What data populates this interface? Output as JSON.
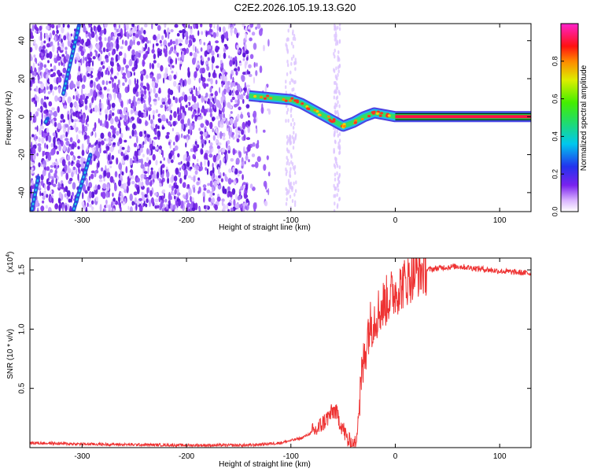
{
  "title": "C2E2.2026.105.19.13.G20",
  "chart_data": [
    {
      "type": "heatmap",
      "xlabel": "Height of straight line (km)",
      "ylabel": "Frequency (Hz)",
      "xlim": [
        -350,
        130
      ],
      "ylim": [
        -50,
        49
      ],
      "xticks": [
        -300,
        -200,
        -100,
        0,
        100
      ],
      "yticks": [
        -40,
        -20,
        0,
        20,
        40
      ],
      "colorbar": {
        "label": "Normalized spectral amplitude",
        "range": [
          0.0,
          1.0
        ],
        "ticks": [
          0.0,
          0.2,
          0.4,
          0.6,
          0.8
        ],
        "colormap": "rainbow (white-violet-blue-cyan-green-yellow-red-magenta)"
      },
      "tone_frequency_hz": 0,
      "signal_trace": {
        "x": [
          -140,
          -120,
          -100,
          -90,
          -80,
          -70,
          -60,
          -50,
          -40,
          -30,
          -20,
          -10,
          0,
          130
        ],
        "y": [
          11,
          10,
          9,
          7,
          4,
          1,
          -2,
          -5,
          -3,
          0,
          2,
          1,
          0,
          0
        ]
      },
      "early_tracks": [
        {
          "x": [
            -348,
            -342
          ],
          "y": [
            -49,
            -32
          ]
        },
        {
          "x": [
            -335,
            -333
          ],
          "y": [
            -3,
            -1
          ]
        },
        {
          "x": [
            -318,
            -303
          ],
          "y": [
            12,
            48
          ]
        },
        {
          "x": [
            -308,
            -292
          ],
          "y": [
            -49,
            -20
          ]
        }
      ],
      "grid": false
    },
    {
      "type": "line",
      "xlabel": "Height of straight line (km)",
      "ylabel": "SNR (10 * v/v)",
      "y_multiplier": "(x10",
      "y_multiplier_exp": "4",
      "y_multiplier_close": ")",
      "xlim": [
        -350,
        130
      ],
      "ylim": [
        0,
        1.6
      ],
      "xticks": [
        -300,
        -200,
        -100,
        0,
        100
      ],
      "yticks": [
        0.5,
        1.0,
        1.5
      ],
      "series": [
        {
          "color": "#ee3333",
          "x": [
            -350,
            -300,
            -200,
            -140,
            -110,
            -90,
            -75,
            -65,
            -58,
            -52,
            -45,
            -38,
            -32,
            -26,
            -20,
            -12,
            -5,
            0,
            10,
            20,
            30,
            45,
            60,
            80,
            100,
            130
          ],
          "y": [
            0.04,
            0.03,
            0.02,
            0.02,
            0.04,
            0.08,
            0.15,
            0.25,
            0.32,
            0.2,
            0.05,
            0.03,
            0.6,
            1.0,
            1.1,
            1.2,
            1.28,
            1.32,
            1.4,
            1.48,
            1.5,
            1.52,
            1.53,
            1.51,
            1.49,
            1.47
          ]
        }
      ],
      "grid": false
    }
  ]
}
